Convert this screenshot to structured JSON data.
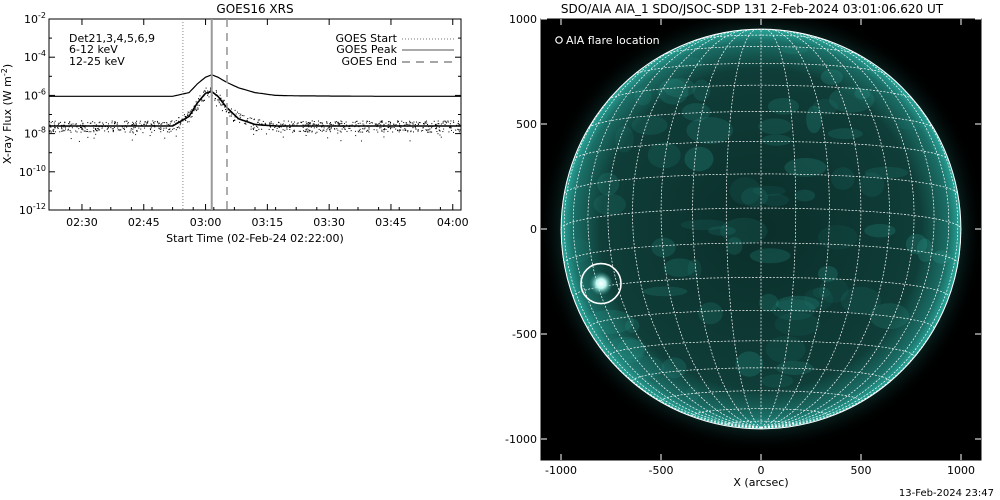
{
  "chart_data": [
    {
      "type": "line",
      "title": "GOES16 XRS",
      "xlabel": "Start Time (02-Feb-24 02:22:00)",
      "ylabel": "X-ray Flux (W m",
      "ylabel_exp": "-2",
      "ylabel_close": ")",
      "x_ticks": [
        "02:30",
        "02:45",
        "03:00",
        "03:15",
        "03:30",
        "03:45",
        "04:00"
      ],
      "x_tick_minutes": [
        8,
        23,
        38,
        53,
        68,
        83,
        98
      ],
      "xlim_minutes": [
        0,
        100
      ],
      "y_scale": "log",
      "ylim": [
        1e-12,
        0.01
      ],
      "y_ticks": [
        {
          "base": "10",
          "exp": "-2",
          "value": 0.01
        },
        {
          "base": "10",
          "exp": "-4",
          "value": 0.0001
        },
        {
          "base": "10",
          "exp": "-6",
          "value": 1e-06
        },
        {
          "base": "10",
          "exp": "-8",
          "value": 1e-08
        },
        {
          "base": "10",
          "exp": "-10",
          "value": 1e-10
        },
        {
          "base": "10",
          "exp": "-12",
          "value": 1e-12
        }
      ],
      "detector_label": "Det21,3,4,5,6,9",
      "energy_bands": [
        {
          "label": "6-12 keV",
          "color": "#cc00cc"
        },
        {
          "label": "12-25 keV",
          "color": "#00cc00"
        }
      ],
      "markers_legend": [
        {
          "label": "GOES Start",
          "style": "dotted"
        },
        {
          "label": "GOES Peak",
          "style": "solid"
        },
        {
          "label": "GOES End",
          "style": "dashed"
        }
      ],
      "markers_minutes": {
        "start": 32.5,
        "peak": 39.5,
        "end": 43.2
      },
      "series": [
        {
          "label_hidden": true,
          "x": [
            0,
            10,
            20,
            30,
            34,
            36,
            38,
            39.5,
            41,
            43,
            46,
            50,
            55,
            60,
            70,
            80,
            90,
            100
          ],
          "values": [
            9e-07,
            9e-07,
            9e-07,
            9e-07,
            1.4e-06,
            4e-06,
            9e-06,
            1.2e-05,
            9e-06,
            5e-06,
            2.5e-06,
            1.4e-06,
            1e-06,
            9.5e-07,
            9.2e-07,
            9e-07,
            9e-07,
            9e-07
          ]
        },
        {
          "label_hidden": true,
          "x": [
            0,
            10,
            20,
            30,
            34,
            36,
            38,
            39.5,
            41,
            43,
            46,
            50,
            55,
            60,
            70,
            80,
            90,
            100
          ],
          "values": [
            2.5e-08,
            2.5e-08,
            2.5e-08,
            2.5e-08,
            8e-08,
            4e-07,
            1.3e-06,
            1.6e-06,
            9e-07,
            2.5e-07,
            6e-08,
            3e-08,
            2.5e-08,
            2.5e-08,
            2.5e-08,
            2.5e-08,
            2.5e-08,
            2.5e-08
          ]
        }
      ]
    },
    {
      "type": "image",
      "title": "SDO/AIA AIA_1 SDO/JSOC-SDP 131  2-Feb-2024 03:01:06.620 UT",
      "legend_label": "AIA flare location",
      "xlabel": "X (arcsec)",
      "x_ticks": [
        "-1000",
        "-500",
        "0",
        "500",
        "1000"
      ],
      "x_tick_values": [
        -1000,
        -500,
        0,
        500,
        1000
      ],
      "y_ticks": [
        "1000",
        "500",
        "0",
        "-500",
        "-1000"
      ],
      "y_tick_values": [
        1000,
        500,
        0,
        -500,
        -1000
      ],
      "xlim": [
        -1100,
        1100
      ],
      "ylim": [
        -1100,
        1000
      ],
      "solar_radius_arcsec": 975,
      "flare_location": {
        "x": -800,
        "y": -260
      },
      "colors": {
        "disk": "#0d3430",
        "limb": "#1f8f84",
        "grid": "#ffffff",
        "flare": "#bff7f0",
        "background": "#000000"
      }
    }
  ],
  "footer": {
    "timestamp": "13-Feb-2024 23:47"
  }
}
